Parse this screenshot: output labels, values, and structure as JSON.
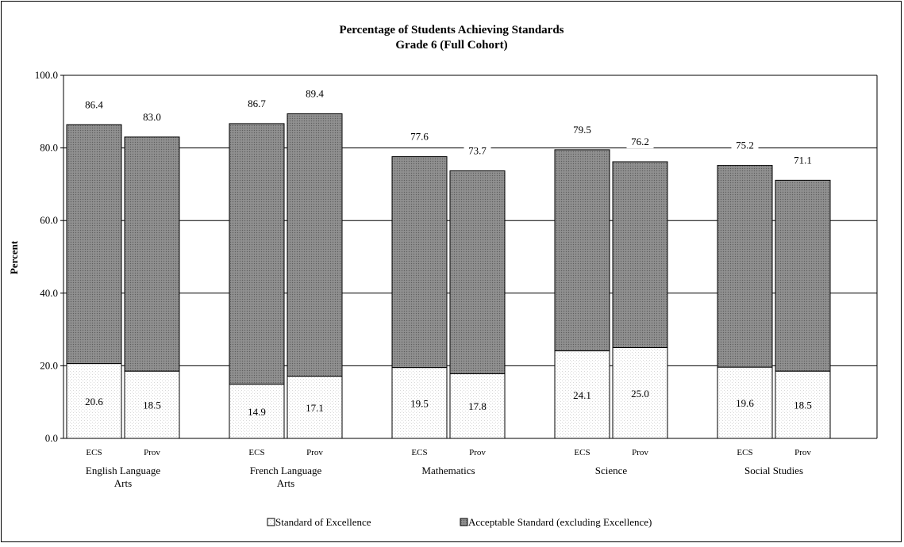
{
  "chart_data": {
    "type": "bar",
    "stacked": true,
    "title": "Percentage of Students Achieving Standards",
    "subtitle": "Grade 6 (Full Cohort)",
    "ylabel": "Percent",
    "ylim": [
      0,
      100
    ],
    "yticks": [
      "0.0",
      "20.0",
      "40.0",
      "60.0",
      "80.0",
      "100.0"
    ],
    "grid": true,
    "legend_position": "bottom",
    "categories": [
      {
        "name_lines": [
          "English Language",
          "Arts"
        ],
        "bars": [
          "ECS",
          "Prov"
        ]
      },
      {
        "name_lines": [
          "French Language",
          "Arts"
        ],
        "bars": [
          "ECS",
          "Prov"
        ]
      },
      {
        "name_lines": [
          "Mathematics"
        ],
        "bars": [
          "ECS",
          "Prov"
        ]
      },
      {
        "name_lines": [
          "Science"
        ],
        "bars": [
          "ECS",
          "Prov"
        ]
      },
      {
        "name_lines": [
          "Social Studies"
        ],
        "bars": [
          "ECS",
          "Prov"
        ]
      }
    ],
    "excellence": [
      20.6,
      18.5,
      14.9,
      17.1,
      19.5,
      17.8,
      24.1,
      25.0,
      19.6,
      18.5
    ],
    "total": [
      86.4,
      83.0,
      86.7,
      89.4,
      77.6,
      73.7,
      79.5,
      76.2,
      75.2,
      71.1
    ],
    "excellence_labels": [
      "20.6",
      "18.5",
      "14.9",
      "17.1",
      "19.5",
      "17.8",
      "24.1",
      "25.0",
      "19.6",
      "18.5"
    ],
    "total_labels": [
      "86.4",
      "83.0",
      "86.7",
      "89.4",
      "77.6",
      "73.7",
      "79.5",
      "76.2",
      "75.2",
      "71.1"
    ],
    "series": [
      {
        "name": "Standard of Excellence",
        "color": "#ffffff",
        "pattern": "dots-light"
      },
      {
        "name": "Acceptable Standard (excluding Excellence)",
        "color": "#808080",
        "pattern": "dots-dark"
      }
    ]
  }
}
